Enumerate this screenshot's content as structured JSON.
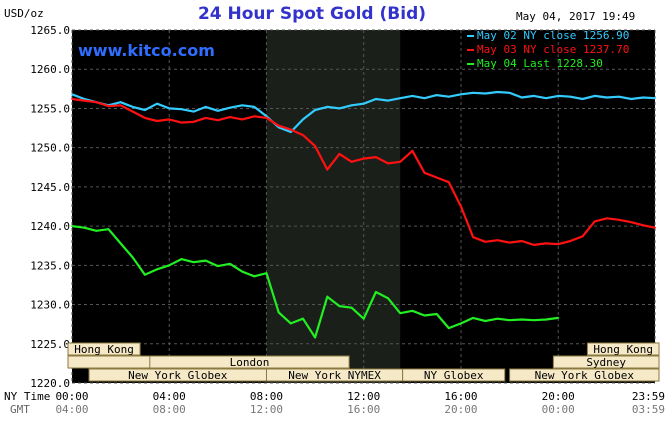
{
  "header": {
    "unit": "USD/oz",
    "title": "24 Hour Spot Gold (Bid)",
    "timestamp": "May 04, 2017 19:49",
    "website": "www.kitco.com"
  },
  "colors": {
    "background": "#000000",
    "title": "#3333cc",
    "website": "#2f6dff",
    "grid": "#555555",
    "axis_text": "#000000",
    "highlight": "#1a1f1a",
    "session_fill": "#f5e9c8",
    "session_border": "#8a7a40"
  },
  "chart_data": {
    "type": "line",
    "title": "24 Hour Spot Gold (Bid)",
    "ylabel": "USD/oz",
    "xlabel": "",
    "ylim": [
      1220,
      1265
    ],
    "yticks": [
      "1265.0",
      "1260.0",
      "1255.0",
      "1250.0",
      "1245.0",
      "1240.0",
      "1235.0",
      "1230.0",
      "1225.0",
      "1220.0"
    ],
    "ytick_values": [
      1265,
      1260,
      1255,
      1250,
      1245,
      1240,
      1235,
      1230,
      1225,
      1220
    ],
    "x_unit": "hours (NY time)",
    "xlim": [
      0,
      23.98
    ],
    "xticks_ny": [
      "00:00",
      "04:00",
      "08:00",
      "12:00",
      "16:00",
      "20:00",
      "23:59"
    ],
    "xticks_gmt": [
      "04:00",
      "08:00",
      "12:00",
      "16:00",
      "20:00",
      "00:00",
      "03:59"
    ],
    "xtick_values": [
      0,
      4,
      8,
      12,
      16,
      20,
      23.98
    ],
    "row_labels": [
      "NY Time",
      "GMT"
    ],
    "highlight_range": [
      8,
      13.5
    ],
    "grid": true,
    "legend_position": "top-right",
    "legend": [
      {
        "label": "May 02 NY close 1256.90",
        "color": "#33ccff"
      },
      {
        "label": "May 03 NY close 1237.70",
        "color": "#ff1111"
      },
      {
        "label": "May 04 Last 1228.30",
        "color": "#22ee22"
      }
    ],
    "series": [
      {
        "name": "May 02 NY close 1256.90",
        "color": "#33ccff",
        "x": [
          0,
          0.5,
          1,
          1.5,
          2,
          2.5,
          3,
          3.5,
          4,
          4.5,
          5,
          5.5,
          6,
          6.5,
          7,
          7.5,
          8,
          8.5,
          9,
          9.5,
          10,
          10.5,
          11,
          11.5,
          12,
          12.5,
          13,
          13.5,
          14,
          14.5,
          15,
          15.5,
          16,
          16.5,
          17,
          17.5,
          18,
          18.5,
          19,
          19.5,
          20,
          20.5,
          21,
          21.5,
          22,
          22.5,
          23,
          23.5,
          23.98
        ],
        "values": [
          1256.8,
          1256.2,
          1255.8,
          1255.4,
          1255.8,
          1255.2,
          1254.8,
          1255.6,
          1255.0,
          1254.9,
          1254.6,
          1255.2,
          1254.7,
          1255.1,
          1255.4,
          1255.2,
          1254.0,
          1252.6,
          1252.0,
          1253.6,
          1254.8,
          1255.2,
          1255.0,
          1255.4,
          1255.6,
          1256.2,
          1256.0,
          1256.3,
          1256.6,
          1256.3,
          1256.7,
          1256.5,
          1256.8,
          1257.0,
          1256.9,
          1257.1,
          1257.0,
          1256.4,
          1256.6,
          1256.3,
          1256.6,
          1256.5,
          1256.2,
          1256.6,
          1256.4,
          1256.5,
          1256.2,
          1256.4,
          1256.3
        ]
      },
      {
        "name": "May 03 NY close 1237.70",
        "color": "#ff1111",
        "x": [
          0,
          0.5,
          1,
          1.5,
          2,
          2.5,
          3,
          3.5,
          4,
          4.5,
          5,
          5.5,
          6,
          6.5,
          7,
          7.5,
          8,
          8.5,
          9,
          9.5,
          10,
          10.5,
          11,
          11.5,
          12,
          12.5,
          13,
          13.5,
          14,
          14.5,
          15,
          15.5,
          16,
          16.5,
          17,
          17.5,
          18,
          18.5,
          19,
          19.5,
          20,
          20.5,
          21,
          21.5,
          22,
          22.5,
          23,
          23.5,
          23.98
        ],
        "values": [
          1256.2,
          1256.0,
          1255.8,
          1255.3,
          1255.4,
          1254.6,
          1253.8,
          1253.4,
          1253.6,
          1253.2,
          1253.3,
          1253.8,
          1253.5,
          1253.9,
          1253.6,
          1254.0,
          1253.8,
          1252.8,
          1252.3,
          1251.6,
          1250.2,
          1247.2,
          1249.2,
          1248.2,
          1248.6,
          1248.8,
          1248.0,
          1248.2,
          1249.6,
          1246.8,
          1246.2,
          1245.6,
          1242.5,
          1238.6,
          1238.0,
          1238.2,
          1237.9,
          1238.1,
          1237.6,
          1237.8,
          1237.7,
          1238.1,
          1238.7,
          1240.6,
          1241.0,
          1240.8,
          1240.5,
          1240.1,
          1239.8
        ]
      },
      {
        "name": "May 04 Last 1228.30",
        "color": "#22ee22",
        "x": [
          0,
          0.5,
          1,
          1.5,
          2,
          2.5,
          3,
          3.5,
          4,
          4.5,
          5,
          5.5,
          6,
          6.5,
          7,
          7.5,
          8,
          8.5,
          9,
          9.5,
          10,
          10.5,
          11,
          11.5,
          12,
          12.5,
          13,
          13.5,
          14,
          14.5,
          15,
          15.5,
          16,
          16.5,
          17,
          17.5,
          18,
          18.5,
          19,
          19.5,
          20
        ],
        "values": [
          1240.0,
          1239.8,
          1239.4,
          1239.6,
          1237.8,
          1236.0,
          1233.8,
          1234.5,
          1235.0,
          1235.8,
          1235.4,
          1235.6,
          1234.9,
          1235.2,
          1234.2,
          1233.6,
          1234.0,
          1229.0,
          1227.6,
          1228.2,
          1225.8,
          1231.0,
          1229.8,
          1229.6,
          1228.2,
          1231.6,
          1230.8,
          1228.9,
          1229.2,
          1228.6,
          1228.8,
          1227.0,
          1227.6,
          1228.3,
          1227.9,
          1228.2,
          1228.0,
          1228.1,
          1228.0,
          1228.1,
          1228.3
        ]
      }
    ],
    "sessions": [
      {
        "label": "Hong Kong",
        "start": -0.3,
        "end": 2.8,
        "row": 0
      },
      {
        "label": "",
        "start": -0.3,
        "end": 5.6,
        "row": 1
      },
      {
        "label": "London",
        "start": 3.2,
        "end": 11.4,
        "row": 1
      },
      {
        "label": "New York Globex",
        "start": 0.7,
        "end": 8.0,
        "row": 2
      },
      {
        "label": "New York NYMEX",
        "start": 8.0,
        "end": 13.6,
        "row": 2
      },
      {
        "label": "NY Globex",
        "start": 13.6,
        "end": 17.8,
        "row": 2
      },
      {
        "label": "Hong Kong",
        "start": 21.2,
        "end": 24.5,
        "row": 0
      },
      {
        "label": "Sydney",
        "start": 19.8,
        "end": 24.5,
        "row": 1
      },
      {
        "label": "New York Globex",
        "start": 18.0,
        "end": 24.5,
        "row": 2
      }
    ]
  }
}
